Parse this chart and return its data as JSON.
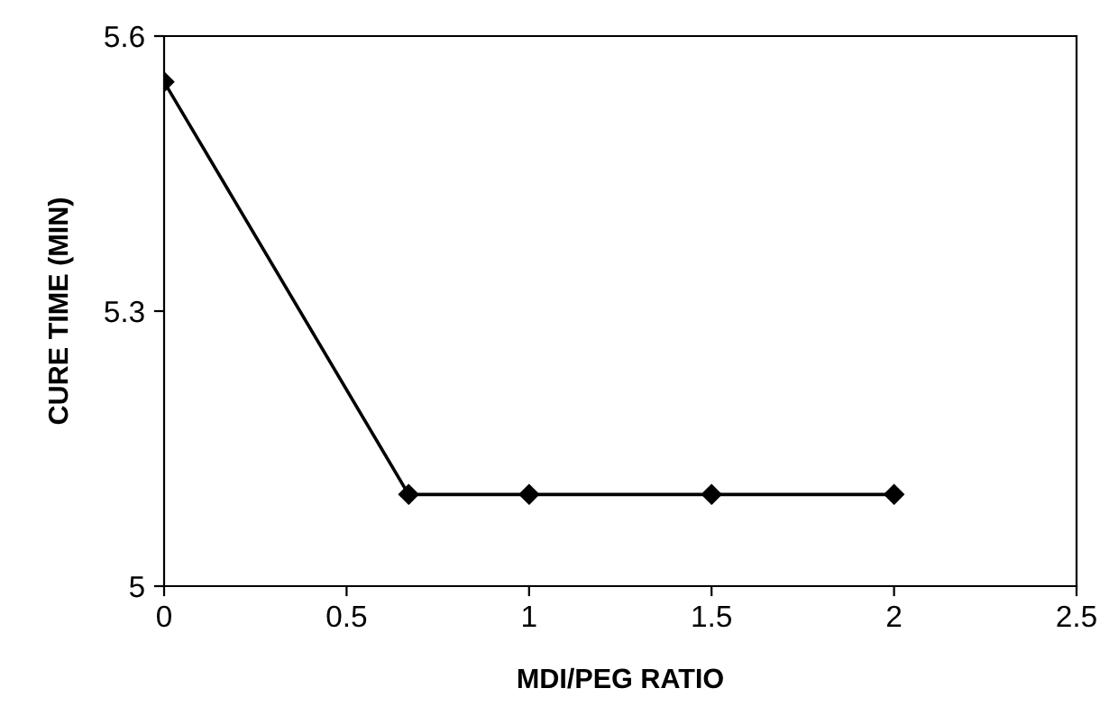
{
  "chart_data": {
    "type": "line",
    "xlabel": "MDI/PEG RATIO",
    "ylabel": "CURE TIME (MIN)",
    "x": [
      0,
      0.67,
      1,
      1.5,
      2
    ],
    "series": [
      {
        "color": "#000000",
        "values": [
          5.55,
          5.1,
          5.1,
          5.1,
          5.1
        ]
      }
    ],
    "xlim": [
      0,
      2.5
    ],
    "xticks": [
      0,
      0.5,
      1,
      1.5,
      2,
      2.5
    ],
    "ylim": [
      5,
      5.6
    ],
    "yticks": [
      5,
      5.3,
      5.6
    ],
    "marker": "diamond",
    "line_style": "solid",
    "grid": false,
    "legend": false
  }
}
